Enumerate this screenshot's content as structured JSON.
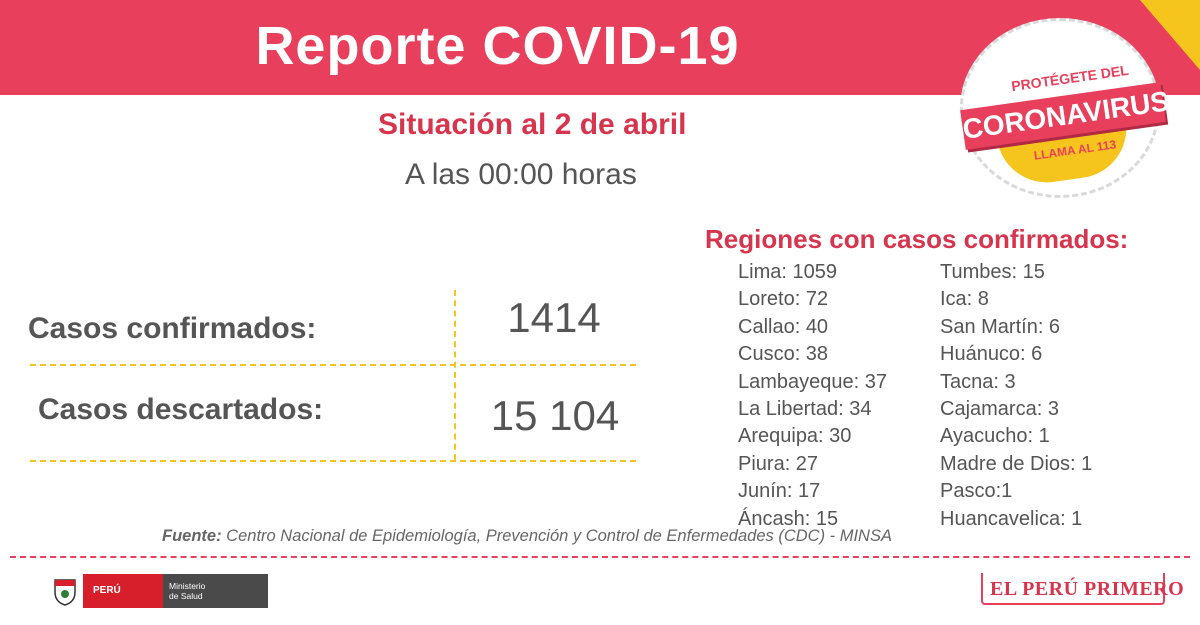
{
  "header": {
    "title": "Reporte COVID-19"
  },
  "badge": {
    "top": "PROTÉGETE DEL",
    "main": "CORONAVIRUS",
    "bottom": "LLAMA AL 113"
  },
  "situation": {
    "title": "Situación al 2 de abril",
    "time": "A las 00:00 horas"
  },
  "cases": {
    "confirmed_label": "Casos confirmados:",
    "confirmed_value": "1414",
    "discarded_label": "Casos descartados:",
    "discarded_value": "15 104"
  },
  "regions": {
    "title": "Regiones con casos confirmados:",
    "col1": [
      "Lima: 1059",
      "Loreto: 72",
      "Callao: 40",
      "Cusco: 38",
      "Lambayeque: 37",
      "La Libertad: 34",
      "Arequipa: 30",
      "Piura: 27",
      "Junín: 17",
      "Áncash: 15"
    ],
    "col2": [
      "Tumbes: 15",
      "Ica: 8",
      "San Martín: 6",
      "Huánuco: 6",
      "Tacna: 3",
      "Cajamarca: 3",
      "Ayacucho: 1",
      "Madre de Dios: 1",
      "Pasco:1",
      "Huancavelica: 1"
    ]
  },
  "source": {
    "label": "Fuente:",
    "text": " Centro Nacional de Epidemiología, Prevención y Control de Enfermedades (CDC) - MINSA"
  },
  "footer": {
    "ministry_country": "PERÚ",
    "ministry_line1": "Ministerio",
    "ministry_line2": "de Salud",
    "brand": "EL PERÚ PRIMERO"
  },
  "colors": {
    "accent": "#e8405c",
    "yellow": "#f6c51d",
    "text": "#555555"
  }
}
